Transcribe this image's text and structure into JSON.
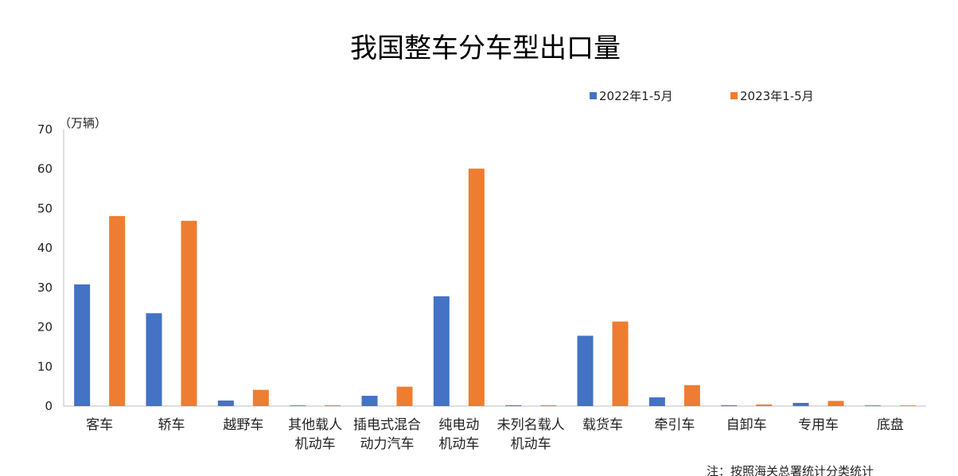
{
  "chart_data": {
    "type": "bar",
    "title": "我国整车分车型出口量",
    "unit_label": "（万辆）",
    "note": "注：按照海关总署统计分类统计",
    "categories": [
      [
        "客车"
      ],
      [
        "轿车"
      ],
      [
        "越野车"
      ],
      [
        "其他载人",
        "机动车"
      ],
      [
        "插电式混合",
        "动力汽车"
      ],
      [
        "纯电动",
        "机动车"
      ],
      [
        "未列名载人",
        "机动车"
      ],
      [
        "载货车"
      ],
      [
        "牵引车"
      ],
      [
        "自卸车"
      ],
      [
        "专用车"
      ],
      [
        "底盘"
      ]
    ],
    "series": [
      {
        "name": "2022年1-5月",
        "color": "#4472C4",
        "values": [
          30.8,
          23.5,
          1.4,
          0.1,
          2.6,
          27.8,
          0.2,
          17.8,
          2.2,
          0.2,
          0.8,
          0.1
        ]
      },
      {
        "name": "2023年1-5月",
        "color": "#ED7D31",
        "values": [
          48.1,
          46.9,
          4.1,
          0.2,
          4.9,
          60.1,
          0.2,
          21.4,
          5.3,
          0.4,
          1.3,
          0.1
        ]
      }
    ],
    "yticks": [
      0,
      10,
      20,
      30,
      40,
      50,
      60,
      70
    ],
    "ylim": [
      0,
      70
    ],
    "grid": false,
    "legend_position": "top-right"
  }
}
